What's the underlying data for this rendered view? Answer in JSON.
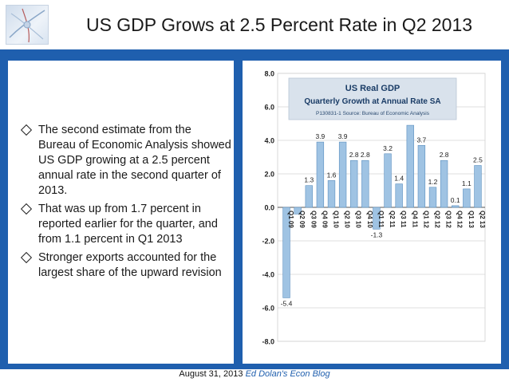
{
  "slide": {
    "title": "US GDP Grows at 2.5 Percent Rate in Q2 2013",
    "bullets": [
      "The second estimate from the Bureau of Economic Analysis showed US GDP growing at a 2.5 percent annual rate in the second quarter of 2013.",
      "That was up from 1.7 percent in reported earlier for the quarter, and from 1.1 percent in Q1 2013",
      "Stronger exports accounted for the largest share of the upward revision"
    ],
    "footer": {
      "date": "August 31, 2013",
      "blog": "Ed Dolan's Econ Blog"
    }
  },
  "colors": {
    "accent": "#1f5fae",
    "bar": "#9fc3e3",
    "bar_stroke": "#5b8fbf",
    "title_box": "#d9e2ec"
  },
  "chart_data": {
    "type": "bar",
    "title": "US Real GDP",
    "subtitle": "Quarterly Growth at Annual Rate SA",
    "source": "P130831-1 Source: Bureau of Economic Analysis",
    "categories": [
      "Q1 09",
      "Q2 09",
      "Q3 09",
      "Q4 09",
      "Q1 10",
      "Q2 10",
      "Q3 10",
      "Q4 10",
      "Q1 11",
      "Q2 11",
      "Q3 11",
      "Q4 11",
      "Q1 12",
      "Q2 12",
      "Q3 12",
      "Q4 12",
      "Q1 13",
      "Q2 13"
    ],
    "values": [
      -5.4,
      -0.4,
      1.3,
      3.9,
      1.6,
      3.9,
      2.8,
      2.8,
      -1.3,
      3.2,
      1.4,
      4.9,
      3.7,
      1.2,
      2.8,
      0.1,
      1.1,
      2.5
    ],
    "data_labels": [
      "-5.4",
      "",
      "1.3",
      "3.9",
      "1.6",
      "3.9",
      "2.8",
      "2.8",
      "-1.3",
      "3.2",
      "1.4",
      "",
      "3.7",
      "1.2",
      "2.8",
      "0.1",
      "1.1",
      "2.5"
    ],
    "ylim": [
      -8,
      8
    ],
    "yticks": [
      "8.0",
      "6.0",
      "4.0",
      "2.0",
      "0.0",
      "-2.0",
      "-4.0",
      "-6.0",
      "-8.0"
    ],
    "grid": true,
    "legend": "none"
  }
}
